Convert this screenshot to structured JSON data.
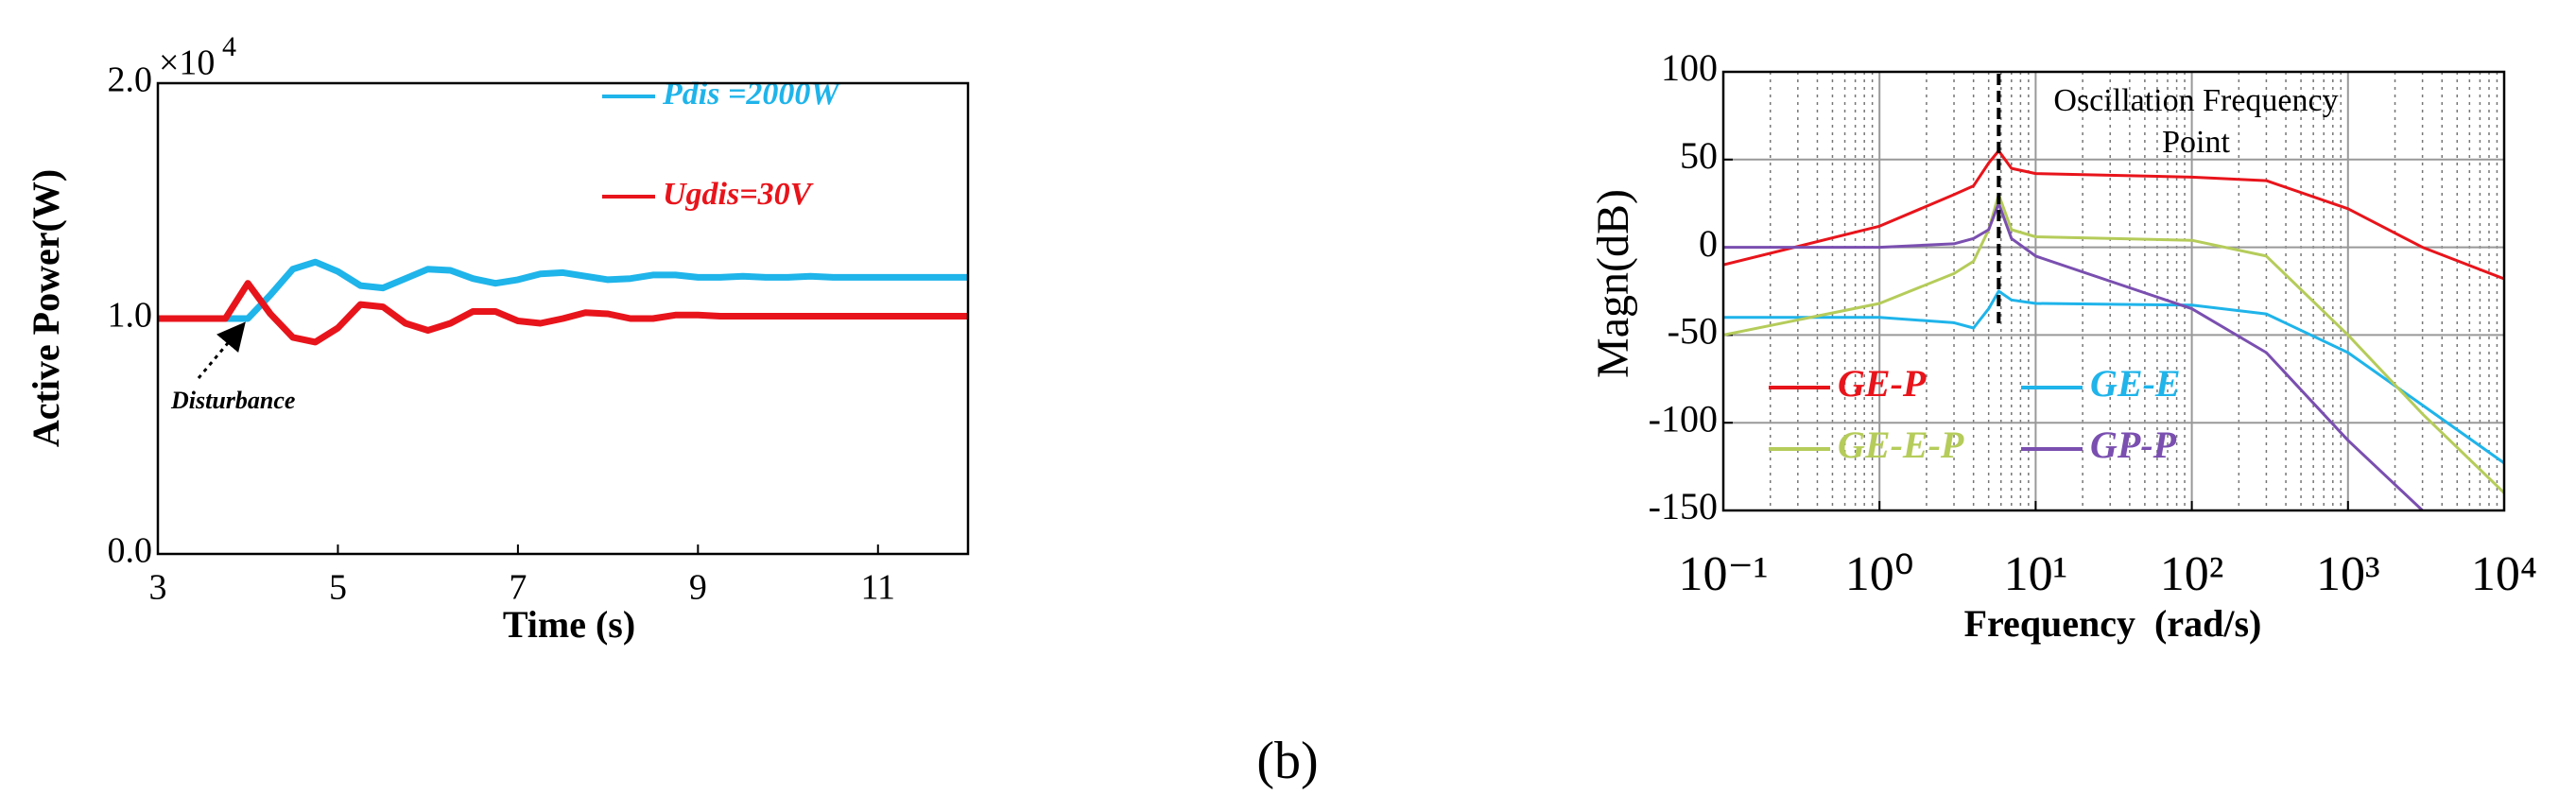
{
  "chart_data": [
    {
      "type": "line",
      "xlabel": "Time (s)",
      "ylabel": "Active Power(W)",
      "y_multiplier": "×10",
      "y_multiplier_exp": "4",
      "annotation": "Disturbance",
      "xlim": [
        3,
        12
      ],
      "xticks": [
        3,
        5,
        7,
        9,
        11
      ],
      "ylim": [
        0,
        20000
      ],
      "yticks": [
        {
          "value": 0,
          "label": "0.0"
        },
        {
          "value": 10000,
          "label": "1.0"
        },
        {
          "value": 20000,
          "label": "2.0"
        }
      ],
      "grid": false,
      "xscale": "linear",
      "x": [
        3,
        3.25,
        3.5,
        3.75,
        4,
        4.25,
        4.5,
        4.75,
        5,
        5.25,
        5.5,
        5.75,
        6,
        6.25,
        6.5,
        6.75,
        7,
        7.25,
        7.5,
        7.75,
        8,
        8.25,
        8.5,
        8.75,
        9,
        9.25,
        9.5,
        9.75,
        10,
        10.25,
        10.5,
        10.75,
        11,
        11.25,
        11.5,
        11.75,
        12
      ],
      "series": [
        {
          "name": "Pdis =2000W",
          "color": "#1fb4ea",
          "values": [
            10000,
            10000,
            10000,
            10000,
            10000,
            11000,
            12100,
            12400,
            12000,
            11400,
            11300,
            11700,
            12100,
            12050,
            11700,
            11500,
            11650,
            11900,
            11950,
            11800,
            11650,
            11700,
            11850,
            11850,
            11750,
            11750,
            11800,
            11750,
            11750,
            11800,
            11750,
            11750,
            11750,
            11750,
            11750,
            11750,
            11750
          ]
        },
        {
          "name": "Ugdis=30V",
          "color": "#e8141b",
          "values": [
            10000,
            10000,
            10000,
            10000,
            11500,
            10200,
            9200,
            9000,
            9600,
            10600,
            10500,
            9800,
            9500,
            9800,
            10300,
            10300,
            9900,
            9800,
            10000,
            10250,
            10200,
            10000,
            10000,
            10150,
            10150,
            10100,
            10100,
            10100,
            10100,
            10100,
            10100,
            10100,
            10100,
            10100,
            10100,
            10100,
            10100
          ]
        }
      ]
    },
    {
      "type": "line",
      "xlabel": "Frequency  (rad/s)",
      "ylabel": "Magn(dB)",
      "annotation": [
        "Oscillation Frequency",
        "Point"
      ],
      "vline": 5.8,
      "xscale": "log",
      "grid": true,
      "xlim": [
        0.1,
        10000
      ],
      "xticks": [
        {
          "value": 0.1,
          "label": "10⁻¹"
        },
        {
          "value": 1,
          "label": "10⁰"
        },
        {
          "value": 10,
          "label": "10¹"
        },
        {
          "value": 100,
          "label": "10²"
        },
        {
          "value": 1000,
          "label": "10³"
        },
        {
          "value": 10000,
          "label": "10⁴"
        }
      ],
      "ylim": [
        -150,
        100
      ],
      "yticks": [
        -150,
        -100,
        -50,
        0,
        50,
        100
      ],
      "x": [
        0.1,
        1,
        3,
        4,
        5,
        5.8,
        7,
        10,
        100,
        300,
        1000,
        3000,
        10000
      ],
      "series": [
        {
          "name": "GE-P",
          "color": "#e8141b",
          "values": [
            -10,
            12,
            30,
            35,
            48,
            55,
            45,
            42,
            40,
            38,
            22,
            0,
            -18
          ]
        },
        {
          "name": "GE-E",
          "color": "#1fb4ea",
          "values": [
            -40,
            -40,
            -43,
            -46,
            -35,
            -25,
            -30,
            -32,
            -33,
            -38,
            -60,
            -90,
            -123
          ]
        },
        {
          "name": "GE-E-P",
          "color": "#b5cc5a",
          "values": [
            -50,
            -32,
            -15,
            -8,
            10,
            30,
            10,
            6,
            4,
            -5,
            -50,
            -95,
            -140
          ]
        },
        {
          "name": "GP-P",
          "color": "#7a4fb0",
          "values": [
            0,
            0,
            2,
            5,
            10,
            25,
            5,
            -5,
            -35,
            -60,
            -110,
            -150,
            null
          ]
        }
      ]
    }
  ],
  "caption": "(b)"
}
